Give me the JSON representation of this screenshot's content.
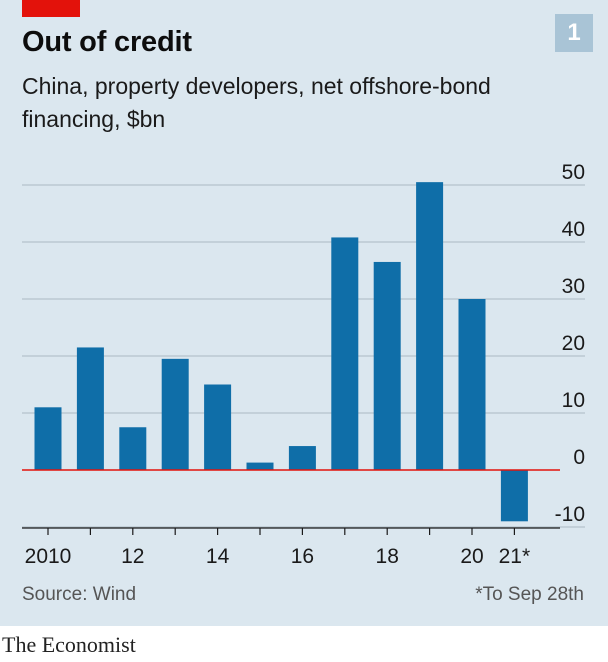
{
  "header": {
    "title": "Out of credit",
    "chart_number": "1",
    "subtitle": "China, property developers, net offshore-bond financing, $bn"
  },
  "footer": {
    "source": "Source: Wind",
    "footnote": "*To Sep 28th",
    "brand": "The Economist"
  },
  "colors": {
    "bar": "#0f6ea8",
    "zero_line": "#e3120b",
    "gridline": "#b5c3cc",
    "accent_tag": "#e3120b",
    "background": "#dbe7ef"
  },
  "chart_data": {
    "type": "bar",
    "title": "Out of credit",
    "subtitle": "China, property developers, net offshore-bond financing, $bn",
    "categories": [
      "2010",
      "2011",
      "2012",
      "2013",
      "2014",
      "2015",
      "2016",
      "2017",
      "2018",
      "2019",
      "2020",
      "2021*"
    ],
    "values": [
      11,
      21.5,
      7.5,
      19.5,
      15,
      1.3,
      4.2,
      40.8,
      36.5,
      50.5,
      30,
      -9
    ],
    "x_tick_labels": [
      "2010",
      "",
      "12",
      "",
      "14",
      "",
      "16",
      "",
      "18",
      "",
      "20",
      "21*"
    ],
    "y_ticks": [
      50,
      40,
      30,
      20,
      10,
      0,
      -10
    ],
    "y_tick_labels": [
      "50",
      "40",
      "30",
      "20",
      "10",
      "0",
      "-10"
    ],
    "ylim": [
      -10,
      50
    ],
    "xlabel": "",
    "ylabel": "",
    "grid": true,
    "y_axis_side": "right"
  }
}
